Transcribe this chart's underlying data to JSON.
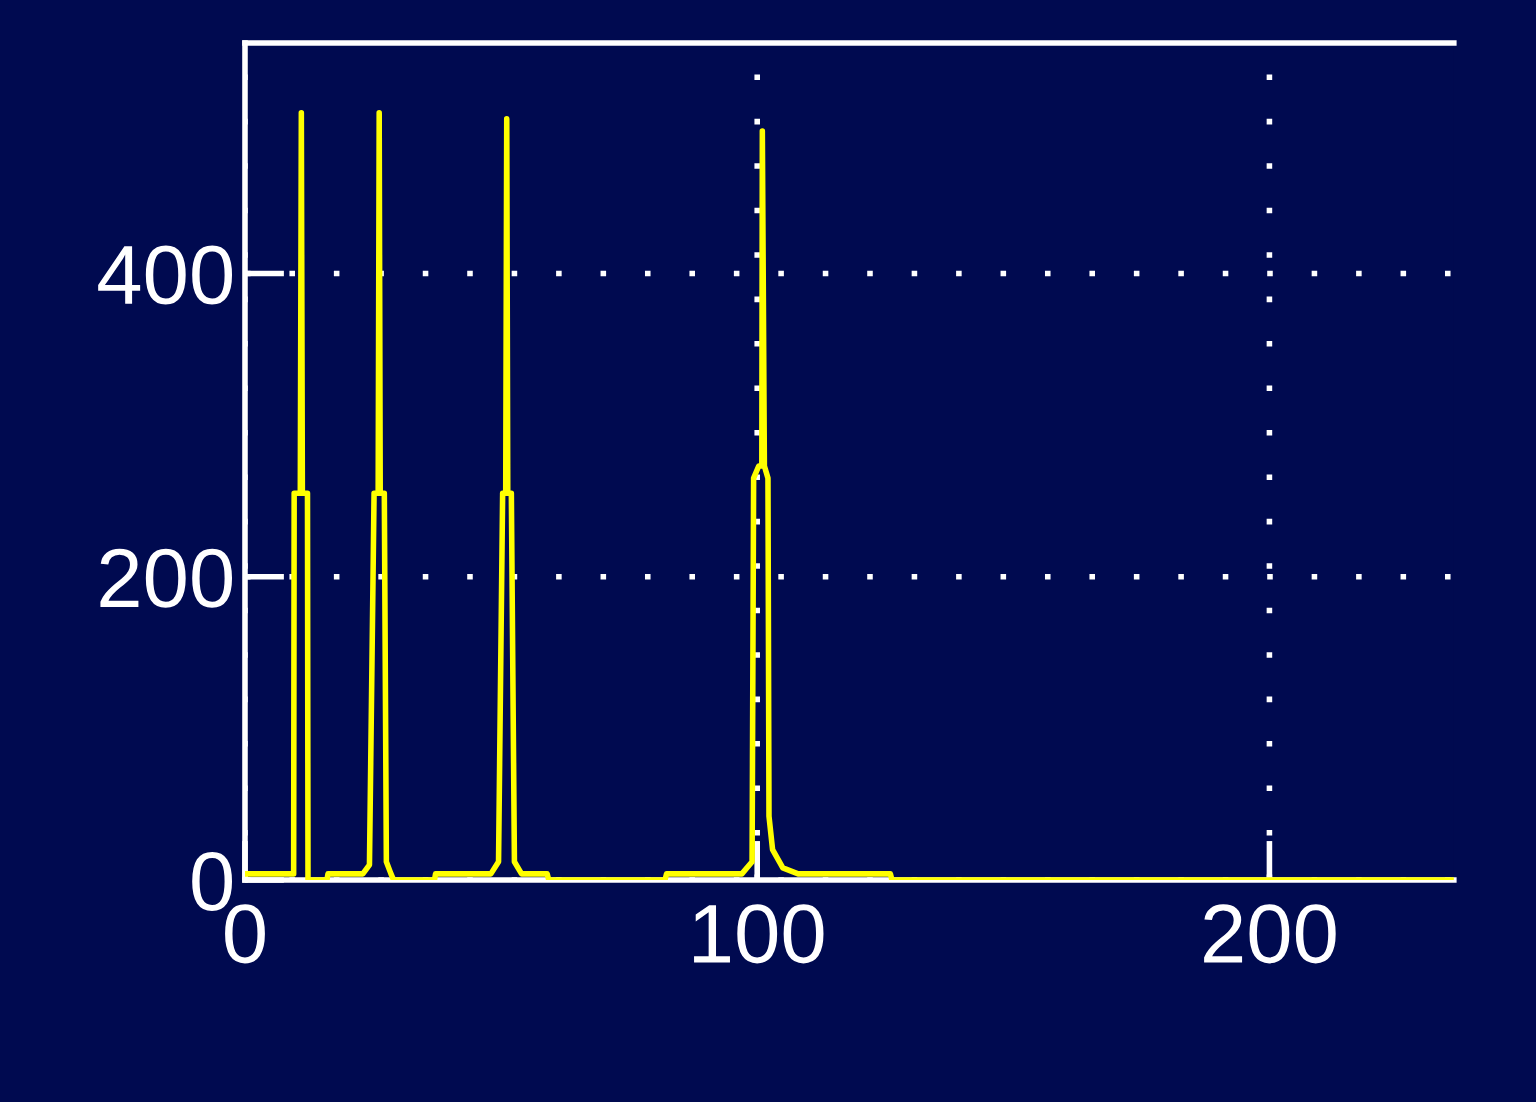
{
  "chart_data": {
    "type": "line",
    "x": [
      0,
      9.5,
      9.6,
      10.8,
      11,
      11.2,
      12.2,
      12.3,
      16,
      16.2,
      23,
      24.3,
      25.2,
      26,
      26.2,
      26.4,
      27.2,
      27.6,
      28.5,
      29,
      37,
      37.2,
      48,
      49.5,
      50.3,
      50.9,
      51.1,
      51.3,
      52.0,
      52.6,
      54,
      59,
      59.3,
      82,
      82.3,
      97,
      99,
      99.3,
      100.3,
      100.9,
      101,
      101.4,
      102.1,
      102.3,
      103,
      105,
      108,
      126,
      126.3,
      236
    ],
    "series": [
      {
        "color": "#ffff00",
        "values": [
          4,
          4,
          255,
          255,
          506,
          255,
          255,
          0,
          0,
          4,
          4,
          10,
          255,
          255,
          506,
          255,
          255,
          12,
          4,
          0,
          0,
          4,
          4,
          12,
          255,
          255,
          502,
          255,
          255,
          12,
          4,
          4,
          0,
          0,
          4,
          4,
          12,
          265,
          273,
          273,
          494,
          273,
          265,
          42,
          20,
          8,
          4,
          4,
          0,
          0
        ]
      }
    ],
    "xlim": [
      0,
      236
    ],
    "ylim": [
      0,
      552
    ],
    "xticks": [
      0,
      100,
      200
    ],
    "yticks": [
      0,
      200,
      400
    ],
    "grid": true,
    "line_style": "solid",
    "marker": "none"
  }
}
